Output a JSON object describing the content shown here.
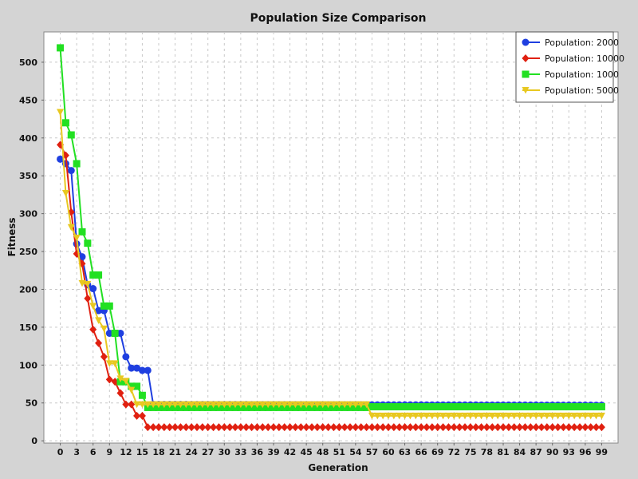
{
  "chart_data": {
    "type": "line",
    "title": "Population Size Comparison",
    "xlabel": "Generation",
    "ylabel": "Fitness",
    "xlim": [
      -3,
      102
    ],
    "ylim": [
      -3,
      540
    ],
    "x_ticks": [
      0,
      3,
      6,
      9,
      12,
      15,
      18,
      21,
      24,
      27,
      30,
      33,
      36,
      39,
      42,
      45,
      48,
      51,
      54,
      57,
      60,
      63,
      66,
      69,
      72,
      75,
      78,
      81,
      84,
      87,
      90,
      93,
      96,
      99
    ],
    "y_ticks": [
      0,
      50,
      100,
      150,
      200,
      250,
      300,
      350,
      400,
      450,
      500
    ],
    "grid": true,
    "legend_position": "top-right",
    "series": [
      {
        "name": "Population: 2000",
        "color": "#1f3fe0",
        "marker": "circle",
        "points": [
          [
            0,
            372
          ],
          [
            1,
            366
          ],
          [
            2,
            357
          ],
          [
            3,
            260
          ],
          [
            4,
            243
          ],
          [
            5,
            206
          ],
          [
            6,
            201
          ],
          [
            7,
            172
          ],
          [
            8,
            172
          ],
          [
            9,
            142
          ],
          [
            10,
            142
          ],
          [
            11,
            142
          ],
          [
            12,
            111
          ],
          [
            13,
            96
          ],
          [
            14,
            96
          ],
          [
            15,
            93
          ],
          [
            16,
            93
          ],
          [
            17,
            48
          ],
          [
            18,
            48
          ],
          [
            19,
            48
          ],
          [
            99,
            47
          ]
        ]
      },
      {
        "name": "Population: 10000",
        "color": "#e02010",
        "marker": "diamond",
        "points": [
          [
            0,
            391
          ],
          [
            1,
            377
          ],
          [
            2,
            302
          ],
          [
            3,
            247
          ],
          [
            4,
            234
          ],
          [
            5,
            188
          ],
          [
            6,
            147
          ],
          [
            7,
            129
          ],
          [
            8,
            111
          ],
          [
            9,
            81
          ],
          [
            10,
            78
          ],
          [
            11,
            63
          ],
          [
            12,
            48
          ],
          [
            13,
            48
          ],
          [
            14,
            33
          ],
          [
            15,
            33
          ],
          [
            16,
            18
          ],
          [
            99,
            18
          ]
        ]
      },
      {
        "name": "Population: 1000",
        "color": "#22e022",
        "marker": "square",
        "points": [
          [
            0,
            519
          ],
          [
            1,
            420
          ],
          [
            2,
            404
          ],
          [
            3,
            366
          ],
          [
            4,
            276
          ],
          [
            5,
            261
          ],
          [
            6,
            219
          ],
          [
            7,
            219
          ],
          [
            8,
            178
          ],
          [
            9,
            178
          ],
          [
            10,
            142
          ],
          [
            11,
            78
          ],
          [
            12,
            78
          ],
          [
            13,
            72
          ],
          [
            14,
            72
          ],
          [
            15,
            60
          ],
          [
            16,
            44
          ],
          [
            17,
            44
          ],
          [
            18,
            44
          ],
          [
            56,
            44
          ],
          [
            57,
            45
          ],
          [
            99,
            45
          ]
        ]
      },
      {
        "name": "Population: 5000",
        "color": "#e8c820",
        "marker": "triangle",
        "points": [
          [
            0,
            434
          ],
          [
            1,
            327
          ],
          [
            2,
            282
          ],
          [
            3,
            268
          ],
          [
            4,
            208
          ],
          [
            5,
            207
          ],
          [
            6,
            178
          ],
          [
            7,
            159
          ],
          [
            8,
            148
          ],
          [
            9,
            102
          ],
          [
            10,
            102
          ],
          [
            11,
            82
          ],
          [
            12,
            79
          ],
          [
            13,
            67
          ],
          [
            14,
            48
          ],
          [
            15,
            48
          ],
          [
            16,
            48
          ],
          [
            56,
            48
          ],
          [
            57,
            33
          ],
          [
            99,
            33
          ]
        ]
      }
    ]
  }
}
